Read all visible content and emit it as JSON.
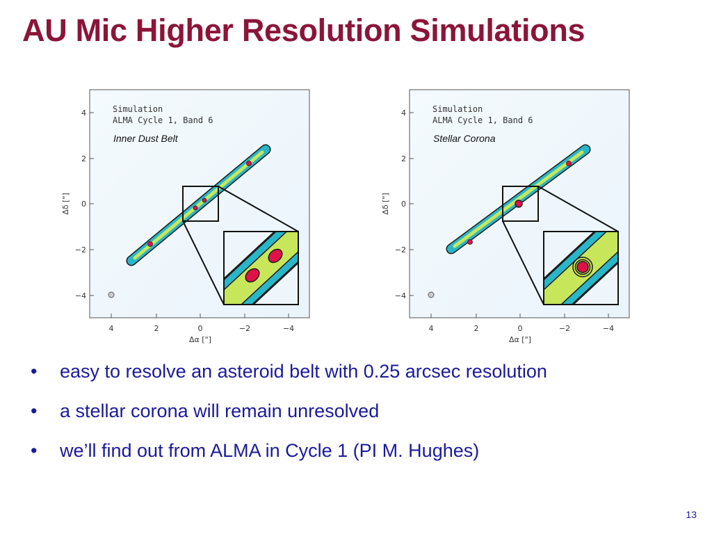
{
  "slide": {
    "title": "AU Mic Higher Resolution Simulations",
    "page_number": "13"
  },
  "panels": [
    {
      "header_line1": "Simulation",
      "header_line2": "ALMA Cycle 1, Band 6",
      "label": "Inner Dust Belt",
      "x_axis_label": "Δα [\"]",
      "y_axis_label": "Δδ [\"]",
      "x_ticks": [
        "4",
        "2",
        "0",
        "−2",
        "−4"
      ],
      "y_ticks": [
        "4",
        "2",
        "0",
        "−2",
        "−4"
      ]
    },
    {
      "header_line1": "Simulation",
      "header_line2": "ALMA Cycle 1, Band 6",
      "label": "Stellar Corona",
      "x_axis_label": "Δα [\"]",
      "y_axis_label": "Δδ [\"]",
      "x_ticks": [
        "4",
        "2",
        "0",
        "−2",
        "−4"
      ],
      "y_ticks": [
        "4",
        "2",
        "0",
        "−2",
        "−4"
      ]
    }
  ],
  "bullets": [
    "easy to resolve an asteroid belt with 0.25 arcsec resolution",
    "a stellar corona will remain unresolved",
    "we’ll find out from ALMA in Cycle 1 (PI M. Hughes)"
  ],
  "bullet_char": "•",
  "colors": {
    "title": "#8b1538",
    "bullet_text": "#1a1a9c",
    "contour_outer": "#29b6c8",
    "contour_mid": "#c8e65a",
    "contour_core": "#e0104a"
  }
}
